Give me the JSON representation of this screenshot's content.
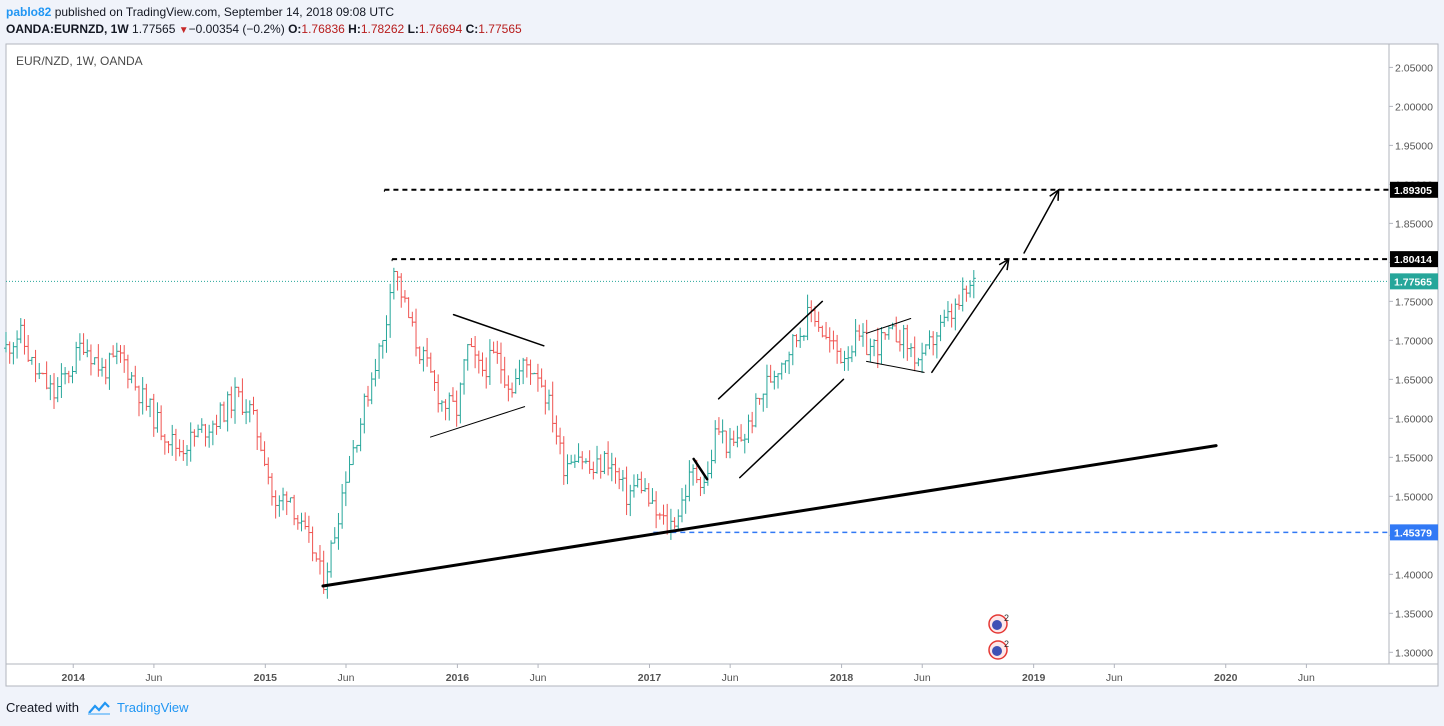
{
  "header": {
    "username": "pablo82",
    "published_text": "published on TradingView.com, September 14, 2018 09:08 UTC",
    "symbol": "OANDA:EURNZD, 1W",
    "last": "1.77565",
    "change": "−0.00354 (−0.2%)",
    "open_label": "O:",
    "open": "1.76836",
    "high_label": "H:",
    "high": "1.78262",
    "low_label": "L:",
    "low": "1.76694",
    "close_label": "C:",
    "close": "1.77565"
  },
  "footer": {
    "created_with": "Created with",
    "brand": "TradingView"
  },
  "colors": {
    "up": "#26a69a",
    "down": "#ef5350",
    "accent": "#2196f3",
    "support": "#3179f5"
  },
  "chart_data": {
    "type": "line",
    "title": "EUR/NZD, 1W, OANDA",
    "symbol": "EURNZD",
    "timeframe": "1W",
    "ylim": [
      1.285,
      2.08
    ],
    "xlim": [
      2013.65,
      2020.85
    ],
    "y_ticks": [
      "2.05000",
      "2.00000",
      "1.95000",
      "1.90000",
      "1.85000",
      "1.80000",
      "1.75000",
      "1.70000",
      "1.65000",
      "1.60000",
      "1.55000",
      "1.50000",
      "1.45000",
      "1.40000",
      "1.35000",
      "1.30000"
    ],
    "x_ticks": [
      {
        "label": "2014",
        "x": 2014.0,
        "bold": true
      },
      {
        "label": "Jun",
        "x": 2014.42,
        "bold": false
      },
      {
        "label": "2015",
        "x": 2015.0,
        "bold": true
      },
      {
        "label": "Jun",
        "x": 2015.42,
        "bold": false
      },
      {
        "label": "2016",
        "x": 2016.0,
        "bold": true
      },
      {
        "label": "Jun",
        "x": 2016.42,
        "bold": false
      },
      {
        "label": "2017",
        "x": 2017.0,
        "bold": true
      },
      {
        "label": "Jun",
        "x": 2017.42,
        "bold": false
      },
      {
        "label": "2018",
        "x": 2018.0,
        "bold": true
      },
      {
        "label": "Jun",
        "x": 2018.42,
        "bold": false
      },
      {
        "label": "2019",
        "x": 2019.0,
        "bold": true
      },
      {
        "label": "Jun",
        "x": 2019.42,
        "bold": false
      },
      {
        "label": "2020",
        "x": 2020.0,
        "bold": true
      },
      {
        "label": "Jun",
        "x": 2020.42,
        "bold": false
      }
    ],
    "price_path": [
      [
        2013.65,
        1.69
      ],
      [
        2013.72,
        1.71
      ],
      [
        2013.8,
        1.66
      ],
      [
        2013.9,
        1.63
      ],
      [
        2014.0,
        1.67
      ],
      [
        2014.05,
        1.7
      ],
      [
        2014.15,
        1.66
      ],
      [
        2014.25,
        1.68
      ],
      [
        2014.35,
        1.63
      ],
      [
        2014.45,
        1.59
      ],
      [
        2014.55,
        1.56
      ],
      [
        2014.65,
        1.58
      ],
      [
        2014.75,
        1.6
      ],
      [
        2014.85,
        1.63
      ],
      [
        2014.92,
        1.61
      ],
      [
        2015.0,
        1.55
      ],
      [
        2015.05,
        1.48
      ],
      [
        2015.12,
        1.51
      ],
      [
        2015.18,
        1.46
      ],
      [
        2015.25,
        1.43
      ],
      [
        2015.3,
        1.39
      ],
      [
        2015.35,
        1.44
      ],
      [
        2015.42,
        1.53
      ],
      [
        2015.5,
        1.6
      ],
      [
        2015.58,
        1.68
      ],
      [
        2015.62,
        1.7
      ],
      [
        2015.66,
        1.8
      ],
      [
        2015.72,
        1.75
      ],
      [
        2015.78,
        1.7
      ],
      [
        2015.85,
        1.66
      ],
      [
        2015.92,
        1.62
      ],
      [
        2016.0,
        1.61
      ],
      [
        2016.05,
        1.69
      ],
      [
        2016.12,
        1.66
      ],
      [
        2016.2,
        1.68
      ],
      [
        2016.28,
        1.64
      ],
      [
        2016.35,
        1.67
      ],
      [
        2016.42,
        1.66
      ],
      [
        2016.5,
        1.6
      ],
      [
        2016.55,
        1.54
      ],
      [
        2016.62,
        1.56
      ],
      [
        2016.7,
        1.53
      ],
      [
        2016.78,
        1.55
      ],
      [
        2016.88,
        1.5
      ],
      [
        2016.95,
        1.52
      ],
      [
        2017.02,
        1.48
      ],
      [
        2017.1,
        1.46
      ],
      [
        2017.15,
        1.48
      ],
      [
        2017.22,
        1.53
      ],
      [
        2017.3,
        1.52
      ],
      [
        2017.35,
        1.59
      ],
      [
        2017.42,
        1.56
      ],
      [
        2017.5,
        1.58
      ],
      [
        2017.6,
        1.64
      ],
      [
        2017.7,
        1.68
      ],
      [
        2017.78,
        1.71
      ],
      [
        2017.85,
        1.74
      ],
      [
        2017.92,
        1.7
      ],
      [
        2018.0,
        1.68
      ],
      [
        2018.08,
        1.7
      ],
      [
        2018.15,
        1.69
      ],
      [
        2018.22,
        1.7
      ],
      [
        2018.3,
        1.71
      ],
      [
        2018.38,
        1.68
      ],
      [
        2018.42,
        1.67
      ],
      [
        2018.47,
        1.7
      ],
      [
        2018.53,
        1.72
      ],
      [
        2018.6,
        1.74
      ],
      [
        2018.65,
        1.76
      ],
      [
        2018.7,
        1.7757
      ]
    ],
    "current_price": "1.77565",
    "current_level": 1.77565,
    "levels": [
      {
        "label": "1.89305",
        "y": 1.89305,
        "start_x": 2015.62,
        "style": "dashed-black"
      },
      {
        "label": "1.80414",
        "y": 1.80414,
        "start_x": 2015.66,
        "style": "dashed-black"
      },
      {
        "label": "1.45379",
        "y": 1.45379,
        "start_x": 2017.02,
        "style": "dashed-blue"
      }
    ],
    "drawings": [
      {
        "name": "long-term-trendline",
        "points": [
          [
            2015.3,
            1.385
          ],
          [
            2019.95,
            1.565
          ]
        ],
        "width": 3
      },
      {
        "name": "triangle-top",
        "points": [
          [
            2015.98,
            1.733
          ],
          [
            2016.45,
            1.693
          ]
        ],
        "width": 1.5
      },
      {
        "name": "triangle-bottom",
        "points": [
          [
            2015.86,
            1.576
          ],
          [
            2016.35,
            1.615
          ]
        ],
        "width": 1
      },
      {
        "name": "flag-pole",
        "points": [
          [
            2017.23,
            1.548
          ],
          [
            2017.3,
            1.522
          ]
        ],
        "width": 2.5
      },
      {
        "name": "channel-top",
        "points": [
          [
            2017.36,
            1.625
          ],
          [
            2017.9,
            1.75
          ]
        ],
        "width": 1.5
      },
      {
        "name": "channel-bottom",
        "points": [
          [
            2017.47,
            1.524
          ],
          [
            2018.01,
            1.65
          ]
        ],
        "width": 1.5
      },
      {
        "name": "wedge-top",
        "points": [
          [
            2018.13,
            1.709
          ],
          [
            2018.36,
            1.728
          ]
        ],
        "width": 1
      },
      {
        "name": "wedge-bottom",
        "points": [
          [
            2018.13,
            1.673
          ],
          [
            2018.43,
            1.659
          ]
        ],
        "width": 1
      },
      {
        "name": "projection-1",
        "points": [
          [
            2018.47,
            1.659
          ],
          [
            2018.87,
            1.804
          ]
        ],
        "width": 1.5
      },
      {
        "name": "projection-2",
        "points": [
          [
            2018.95,
            1.812
          ],
          [
            2019.13,
            1.893
          ]
        ],
        "width": 1.5
      }
    ],
    "annotations": [
      "2",
      "2"
    ]
  }
}
